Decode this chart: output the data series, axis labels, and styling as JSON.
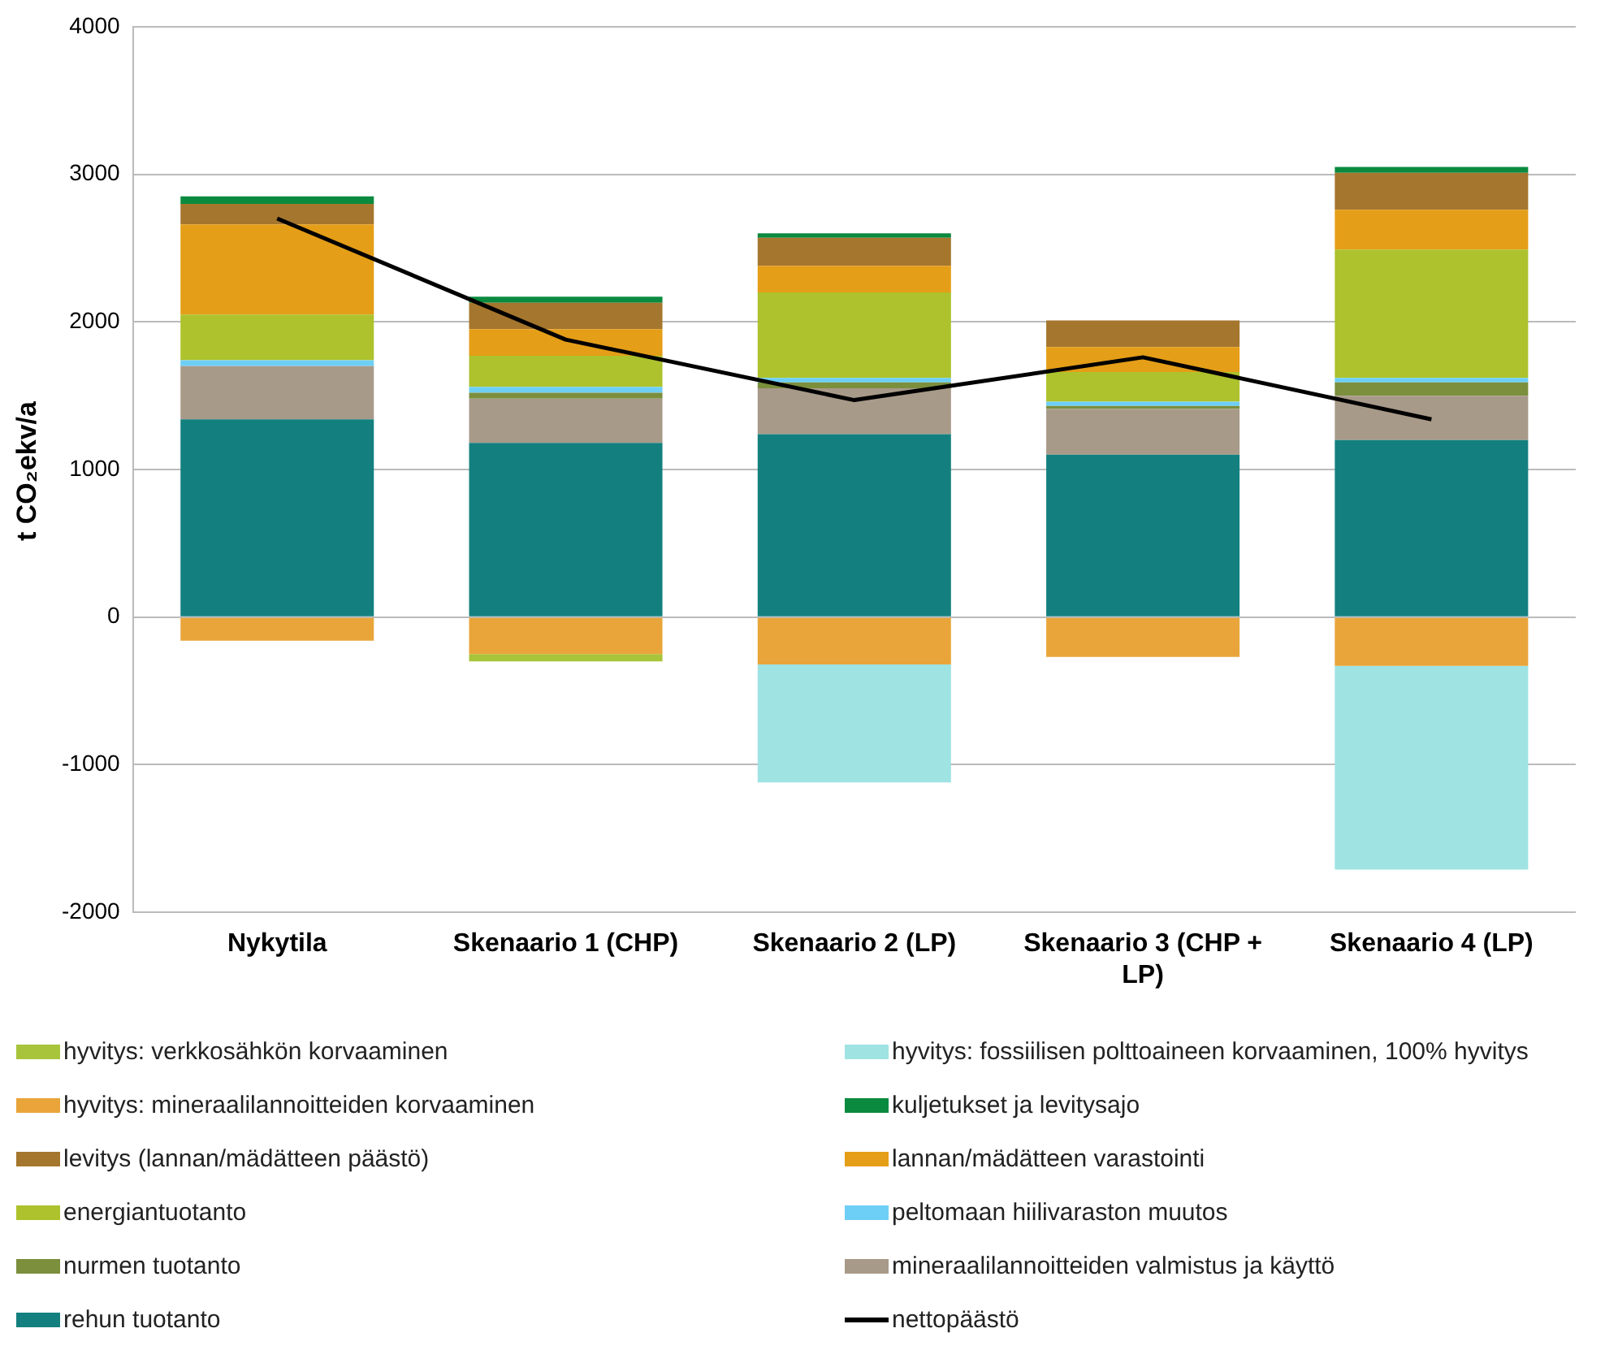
{
  "chart_data": {
    "type": "bar",
    "ylabel": "t CO₂ekv/a",
    "stacked": true,
    "grid": "y",
    "legend": "bottom",
    "marker": "none",
    "categories": [
      "Nykytila",
      "Skenaario 1 (CHP)",
      "Skenaario 2 (LP)",
      "Skenaario 3 (CHP + LP)",
      "Skenaario 4 (LP)"
    ],
    "ylim": [
      -2000,
      4000
    ],
    "yticks": [
      -2000,
      -1000,
      0,
      1000,
      2000,
      3000,
      4000
    ],
    "series": [
      {
        "name": "rehun tuotanto",
        "color": "#13807f",
        "values": [
          1340,
          1180,
          1240,
          1100,
          1200
        ]
      },
      {
        "name": "mineraalilannoitteiden valmistus ja käyttö",
        "color": "#a89a89",
        "values": [
          360,
          300,
          310,
          310,
          300
        ]
      },
      {
        "name": "nurmen tuotanto",
        "color": "#7b8f3c",
        "values": [
          null,
          40,
          40,
          20,
          90
        ]
      },
      {
        "name": "peltomaan hiilivaraston muutos",
        "color": "#6ecff6",
        "values": [
          40,
          40,
          30,
          30,
          30
        ]
      },
      {
        "name": "energiantuotanto",
        "color": "#adc22c",
        "values": [
          310,
          210,
          580,
          200,
          870
        ]
      },
      {
        "name": "lannan/mädätteen varastointi",
        "color": "#e49e17",
        "values": [
          610,
          180,
          180,
          170,
          270
        ]
      },
      {
        "name": "levitys (lannan/mädätteen päästö)",
        "color": "#a5762d",
        "values": [
          140,
          180,
          190,
          180,
          250
        ]
      },
      {
        "name": "kuljetukset ja levitysajo",
        "color": "#0a8a3f",
        "values": [
          50,
          40,
          30,
          null,
          40
        ]
      },
      {
        "name": "hyvitys: mineraalilannoitteiden korvaaminen",
        "color": "#e9a53a",
        "values": [
          -160,
          -250,
          -320,
          -270,
          -330
        ]
      },
      {
        "name": "hyvitys: fossiilisen polttoaineen korvaaminen, 100% hyvitys",
        "color": "#9fe3e3",
        "values": [
          null,
          null,
          -800,
          null,
          -1380
        ]
      },
      {
        "name": "hyvitys: verkkosähkön korvaaminen",
        "color": "#a8c43a",
        "values": [
          null,
          -50,
          null,
          null,
          null
        ]
      },
      {
        "name": "nettopäästö",
        "color": "#000000",
        "type": "line",
        "values": [
          2700,
          1880,
          1470,
          1760,
          1340
        ]
      }
    ]
  }
}
